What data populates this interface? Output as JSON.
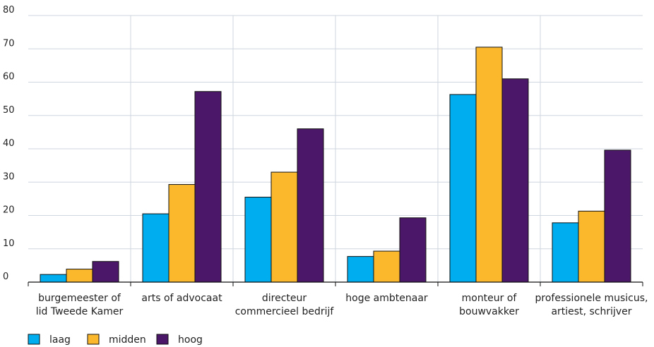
{
  "chart_data": {
    "type": "bar",
    "categories": [
      [
        "burgemeester of",
        "lid Tweede Kamer"
      ],
      [
        "arts of advocaat"
      ],
      [
        "directeur",
        "commercieel bedrijf"
      ],
      [
        "hoge ambtenaar"
      ],
      [
        "monteur of",
        "bouwvakker"
      ],
      [
        "professionele musicus,",
        "artiest, schrijver"
      ]
    ],
    "series": [
      {
        "name": "laag",
        "color": "#00aeef",
        "values": [
          2.3,
          20.5,
          25.5,
          7.7,
          56.3,
          17.8
        ]
      },
      {
        "name": "midden",
        "color": "#fbb82d",
        "values": [
          3.9,
          29.3,
          33.0,
          9.3,
          70.5,
          21.3
        ]
      },
      {
        "name": "hoog",
        "color": "#4b1768",
        "values": [
          6.2,
          57.2,
          46.0,
          19.3,
          61.0,
          39.6
        ]
      }
    ],
    "ylim": [
      0,
      80
    ],
    "yticks": [
      0,
      10,
      20,
      30,
      40,
      50,
      60,
      70,
      80
    ],
    "grid": true,
    "legend": "bottom-left"
  }
}
